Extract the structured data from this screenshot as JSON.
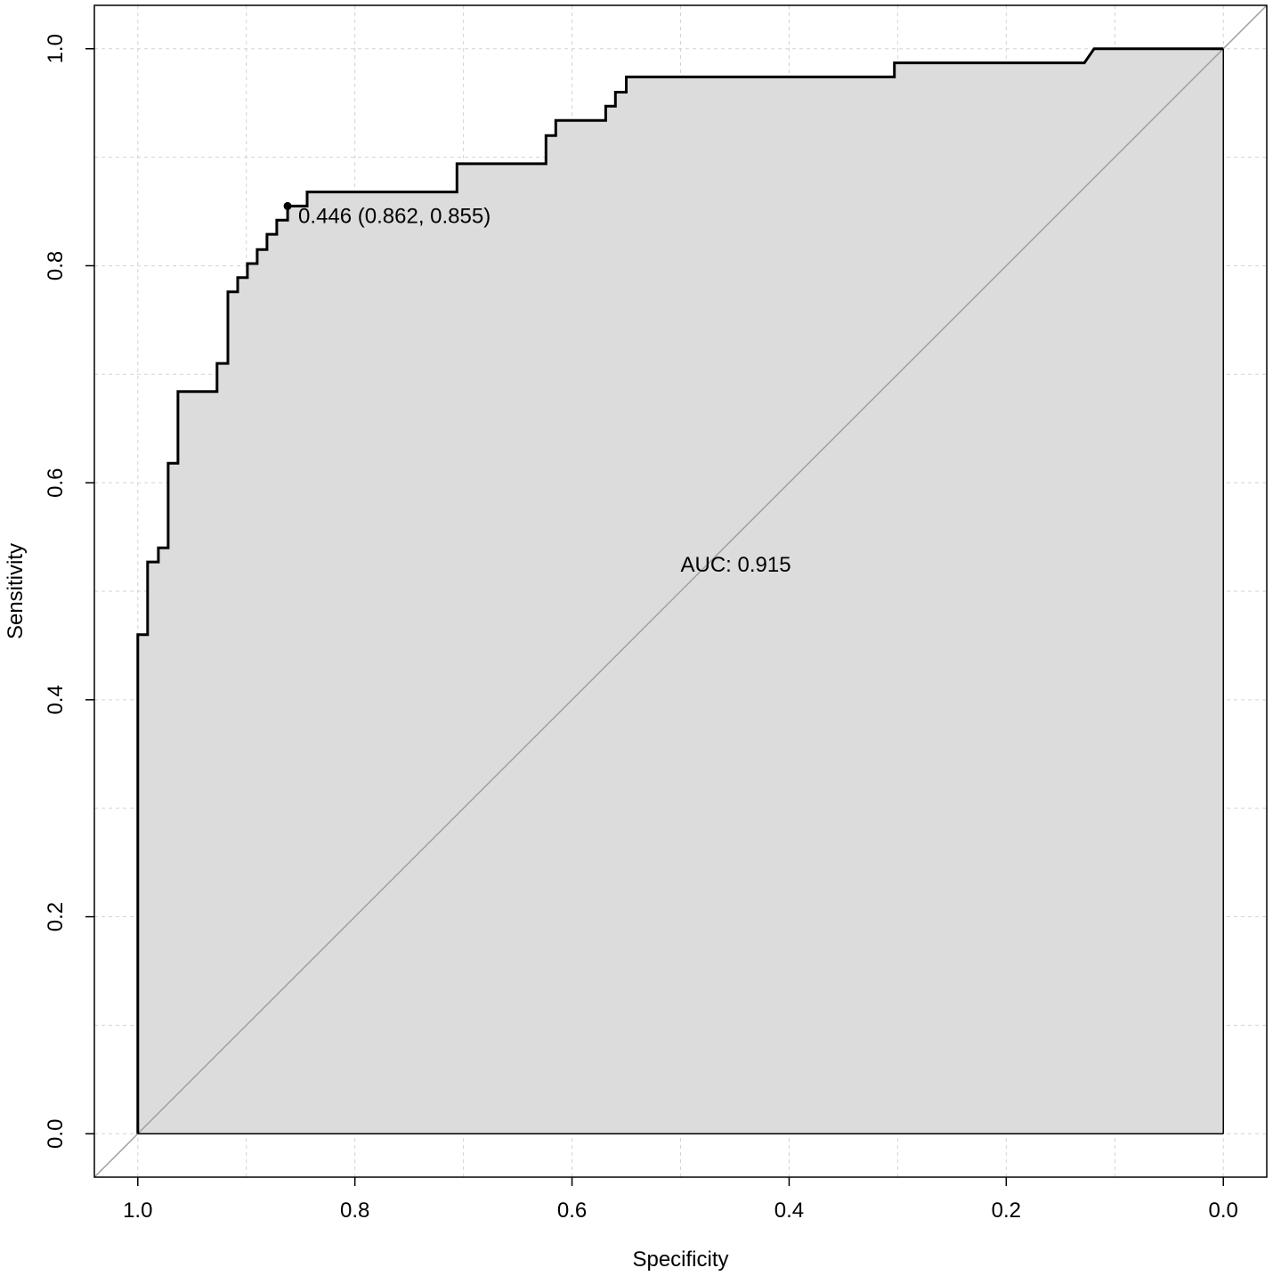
{
  "chart_data": {
    "type": "line",
    "xlabel": "Specificity",
    "ylabel": "Sensitivity",
    "xlim": [
      1.04,
      -0.04
    ],
    "ylim": [
      -0.04,
      1.04
    ],
    "x_reversed": true,
    "grid": true,
    "x_ticks": [
      {
        "value": 1.0,
        "label": "1.0"
      },
      {
        "value": 0.8,
        "label": "0.8"
      },
      {
        "value": 0.6,
        "label": "0.6"
      },
      {
        "value": 0.4,
        "label": "0.4"
      },
      {
        "value": 0.2,
        "label": "0.2"
      },
      {
        "value": 0.0,
        "label": "0.0"
      }
    ],
    "y_ticks": [
      {
        "value": 0.0,
        "label": "0.0"
      },
      {
        "value": 0.2,
        "label": "0.2"
      },
      {
        "value": 0.4,
        "label": "0.4"
      },
      {
        "value": 0.6,
        "label": "0.6"
      },
      {
        "value": 0.8,
        "label": "0.8"
      },
      {
        "value": 1.0,
        "label": "1.0"
      }
    ],
    "roc_curve": {
      "specificity": [
        1.0,
        1.0,
        0.991,
        0.991,
        0.981,
        0.981,
        0.972,
        0.972,
        0.963,
        0.963,
        0.927,
        0.927,
        0.917,
        0.917,
        0.908,
        0.908,
        0.899,
        0.899,
        0.89,
        0.89,
        0.881,
        0.881,
        0.872,
        0.872,
        0.862,
        0.862,
        0.844,
        0.844,
        0.706,
        0.706,
        0.624,
        0.624,
        0.615,
        0.615,
        0.569,
        0.569,
        0.56,
        0.56,
        0.55,
        0.55,
        0.303,
        0.303,
        0.128,
        0.119,
        0.0,
        0.0
      ],
      "sensitivity": [
        0.0,
        0.46,
        0.46,
        0.527,
        0.527,
        0.54,
        0.54,
        0.618,
        0.618,
        0.684,
        0.684,
        0.71,
        0.71,
        0.776,
        0.776,
        0.789,
        0.789,
        0.802,
        0.802,
        0.815,
        0.815,
        0.829,
        0.829,
        0.842,
        0.842,
        0.855,
        0.855,
        0.868,
        0.868,
        0.894,
        0.894,
        0.92,
        0.92,
        0.934,
        0.934,
        0.947,
        0.947,
        0.96,
        0.96,
        0.974,
        0.974,
        0.987,
        0.987,
        1.0,
        1.0,
        0.0
      ],
      "fill_color": "#dcdcdc",
      "line_color": "#000000"
    },
    "diagonal": {
      "from": [
        1.0,
        0.0
      ],
      "to": [
        0.0,
        1.0
      ],
      "color": "#a0a0a0"
    },
    "threshold_point": {
      "specificity": 0.862,
      "sensitivity": 0.855,
      "label": "0.446 (0.862, 0.855)"
    },
    "auc_label": "AUC: 0.915"
  }
}
